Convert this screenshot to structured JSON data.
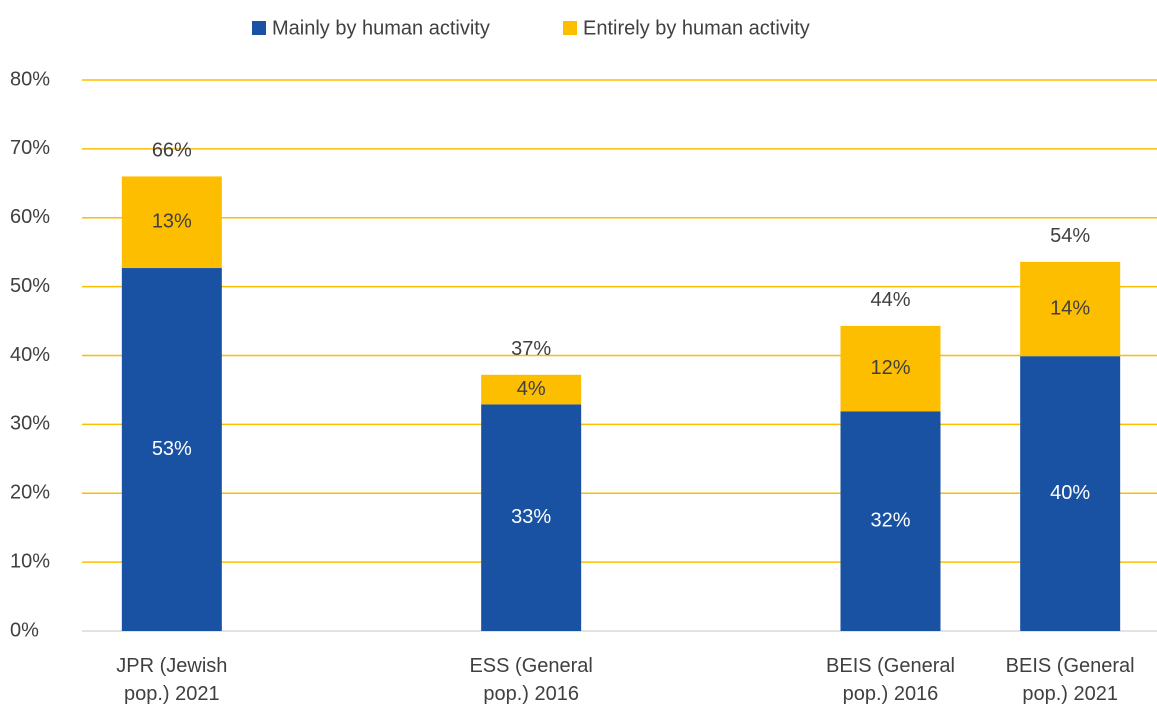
{
  "chart_data": {
    "type": "stacked-bar",
    "categories": [
      "JPR (Jewish pop.) 2021",
      null,
      "ESS (General pop.) 2016",
      null,
      "BEIS (General pop.) 2016",
      "BEIS (General pop.) 2021"
    ],
    "series": [
      {
        "name": "Mainly by human activity",
        "color": "#1a52a3",
        "values": [
          52.7,
          null,
          32.9,
          null,
          31.9,
          39.9
        ],
        "value_labels": [
          "53%",
          null,
          "33%",
          null,
          "32%",
          "40%"
        ]
      },
      {
        "name": "Entirely by human activity",
        "color": "#fdbe00",
        "values": [
          13.3,
          null,
          4.3,
          null,
          12.4,
          13.7
        ],
        "value_labels": [
          "13%",
          null,
          "4%",
          null,
          "12%",
          "14%"
        ]
      }
    ],
    "total_labels": [
      "66%",
      null,
      "37%",
      null,
      "44%",
      "54%"
    ],
    "ylim": [
      0,
      80
    ],
    "yticks": [
      {
        "value": 0,
        "label": "0%"
      },
      {
        "value": 10,
        "label": "10%"
      },
      {
        "value": 20,
        "label": "20%"
      },
      {
        "value": 30,
        "label": "30%"
      },
      {
        "value": 40,
        "label": "40%"
      },
      {
        "value": 50,
        "label": "50%"
      },
      {
        "value": 60,
        "label": "60%"
      },
      {
        "value": 70,
        "label": "70%"
      },
      {
        "value": 80,
        "label": "80%"
      }
    ],
    "grid": true,
    "legend": "top"
  }
}
